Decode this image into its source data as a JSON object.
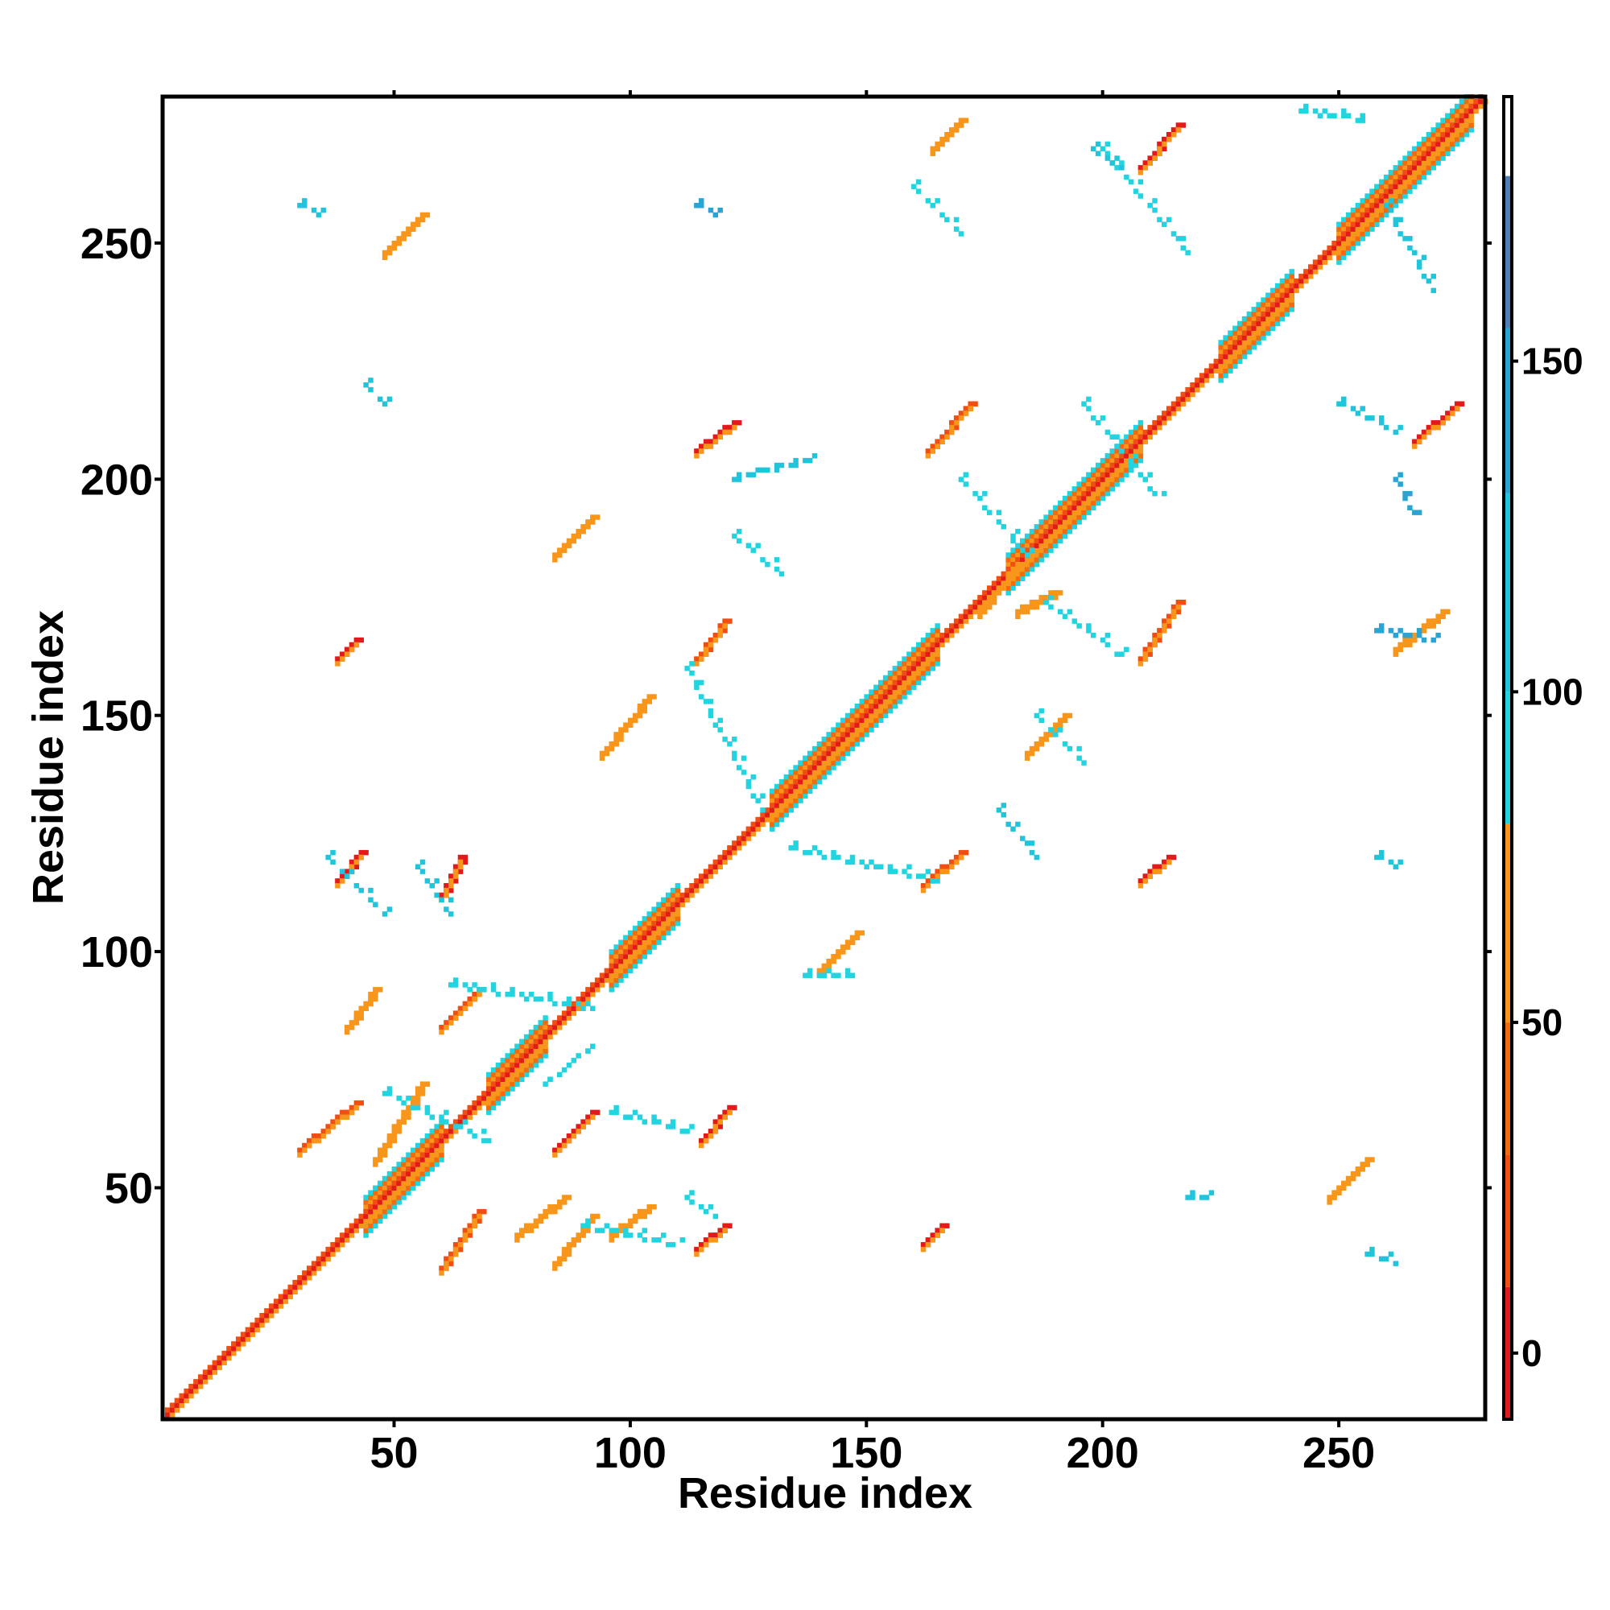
{
  "chart_data": {
    "type": "heatmap",
    "xlabel": "Residue index",
    "ylabel": "Residue index",
    "xlim": [
      1,
      281
    ],
    "ylim": [
      1,
      281
    ],
    "x_ticks": [
      50,
      100,
      150,
      200,
      250
    ],
    "y_ticks": [
      50,
      100,
      150,
      200,
      250
    ],
    "colorbar": {
      "range": [
        -10,
        190
      ],
      "ticks": [
        0,
        50,
        100,
        150
      ],
      "bands": [
        {
          "from": -10,
          "to": 10,
          "color": "#e31a1c"
        },
        {
          "from": 10,
          "to": 30,
          "color": "#f04e12"
        },
        {
          "from": 30,
          "to": 50,
          "color": "#f26b0f"
        },
        {
          "from": 50,
          "to": 80,
          "color": "#f7961a"
        },
        {
          "from": 80,
          "to": 100,
          "color": "#22d3e0"
        },
        {
          "from": 100,
          "to": 130,
          "color": "#20c5dc"
        },
        {
          "from": 130,
          "to": 155,
          "color": "#2aa5d3"
        },
        {
          "from": 155,
          "to": 178,
          "color": "#4f7fb6"
        },
        {
          "from": 178,
          "to": 190,
          "color": "#ffffff"
        }
      ]
    },
    "diagonal": {
      "from": 2,
      "to": 280
    },
    "helix_blocks": [
      {
        "from": 44,
        "to": 60,
        "colors": [
          "#f26b0f",
          "#22d3e0"
        ]
      },
      {
        "from": 70,
        "to": 82,
        "colors": [
          "#f26b0f",
          "#22d3e0"
        ]
      },
      {
        "from": 96,
        "to": 110,
        "colors": [
          "#f26b0f",
          "#22d3e0"
        ]
      },
      {
        "from": 130,
        "to": 165,
        "colors": [
          "#f26b0f",
          "#22d3e0"
        ]
      },
      {
        "from": 180,
        "to": 208,
        "colors": [
          "#f26b0f",
          "#22d3e0"
        ]
      },
      {
        "from": 225,
        "to": 240,
        "colors": [
          "#f26b0f",
          "#22d3e0"
        ]
      },
      {
        "from": 250,
        "to": 278,
        "colors": [
          "#f26b0f",
          "#22d3e0"
        ]
      }
    ],
    "contact_segments": [
      {
        "x": [
          30,
          42
        ],
        "y": [
          58,
          68
        ],
        "color": "#f04e12"
      },
      {
        "x": [
          60,
          68
        ],
        "y": [
          33,
          45
        ],
        "color": "#f04e12"
      },
      {
        "x": [
          60,
          68
        ],
        "y": [
          84,
          92
        ],
        "color": "#f04e12"
      },
      {
        "x": [
          84,
          92
        ],
        "y": [
          58,
          66
        ],
        "color": "#e31a1c"
      },
      {
        "x": [
          114,
          120
        ],
        "y": [
          37,
          42
        ],
        "color": "#e31a1c"
      },
      {
        "x": [
          114,
          120
        ],
        "y": [
          162,
          170
        ],
        "color": "#f04e12"
      },
      {
        "x": [
          38,
          43
        ],
        "y": [
          115,
          121
        ],
        "color": "#e31a1c"
      },
      {
        "x": [
          162,
          170
        ],
        "y": [
          114,
          121
        ],
        "color": "#f04e12"
      },
      {
        "x": [
          208,
          216
        ],
        "y": [
          162,
          174
        ],
        "color": "#f04e12"
      },
      {
        "x": [
          163,
          172
        ],
        "y": [
          206,
          216
        ],
        "color": "#f04e12"
      },
      {
        "x": [
          208,
          216
        ],
        "y": [
          266,
          275
        ],
        "color": "#e31a1c"
      },
      {
        "x": [
          266,
          275
        ],
        "y": [
          208,
          216
        ],
        "color": "#e31a1c"
      },
      {
        "x": [
          48,
          56
        ],
        "y": [
          248,
          256
        ],
        "color": "#f7961a"
      },
      {
        "x": [
          248,
          256
        ],
        "y": [
          48,
          56
        ],
        "color": "#f7961a"
      },
      {
        "x": [
          84,
          92
        ],
        "y": [
          184,
          192
        ],
        "color": "#f7961a"
      },
      {
        "x": [
          184,
          192
        ],
        "y": [
          142,
          150
        ],
        "color": "#f7961a"
      },
      {
        "x": [
          140,
          148
        ],
        "y": [
          96,
          104
        ],
        "color": "#f7961a"
      },
      {
        "x": [
          94,
          104
        ],
        "y": [
          142,
          154
        ],
        "color": "#f7961a"
      },
      {
        "x": [
          114,
          122
        ],
        "y": [
          206,
          212
        ],
        "color": "#e31a1c"
      },
      {
        "x": [
          164,
          170
        ],
        "y": [
          270,
          276
        ],
        "color": "#f7961a"
      },
      {
        "x": [
          262,
          272
        ],
        "y": [
          164,
          172
        ],
        "color": "#f7961a"
      },
      {
        "x": [
          40,
          46
        ],
        "y": [
          84,
          92
        ],
        "color": "#f7961a"
      },
      {
        "x": [
          96,
          104
        ],
        "y": [
          40,
          46
        ],
        "color": "#f7961a"
      },
      {
        "x": [
          46,
          56
        ],
        "y": [
          56,
          72
        ],
        "color": "#f7961a"
      },
      {
        "x": [
          115,
          121
        ],
        "y": [
          60,
          67
        ],
        "color": "#e31a1c"
      },
      {
        "x": [
          60,
          64
        ],
        "y": [
          112,
          120
        ],
        "color": "#e31a1c"
      },
      {
        "x": [
          38,
          42
        ],
        "y": [
          162,
          166
        ],
        "color": "#e31a1c"
      },
      {
        "x": [
          162,
          166
        ],
        "y": [
          38,
          42
        ],
        "color": "#e31a1c"
      },
      {
        "x": [
          208,
          214
        ],
        "y": [
          115,
          120
        ],
        "color": "#e31a1c"
      },
      {
        "x": [
          174,
          182
        ],
        "y": [
          172,
          182
        ],
        "color": "#f7961a"
      },
      {
        "x": [
          182,
          190
        ],
        "y": [
          172,
          176
        ],
        "color": "#f7961a"
      },
      {
        "x": [
          76,
          86
        ],
        "y": [
          40,
          48
        ],
        "color": "#f7961a"
      },
      {
        "x": [
          84,
          92
        ],
        "y": [
          34,
          44
        ],
        "color": "#f7961a"
      }
    ],
    "cyan_trails": [
      {
        "x": [
          48,
          70
        ],
        "y": [
          70,
          60
        ],
        "color": "#22d3e0"
      },
      {
        "x": [
          62,
          92
        ],
        "y": [
          93,
          88
        ],
        "color": "#22d3e0"
      },
      {
        "x": [
          82,
          92
        ],
        "y": [
          72,
          80
        ],
        "color": "#22d3e0"
      },
      {
        "x": [
          112,
          128
        ],
        "y": [
          160,
          130
        ],
        "color": "#22d3e0"
      },
      {
        "x": [
          134,
          165
        ],
        "y": [
          122,
          115
        ],
        "color": "#22d3e0"
      },
      {
        "x": [
          122,
          132
        ],
        "y": [
          188,
          180
        ],
        "color": "#22d3e0"
      },
      {
        "x": [
          170,
          184
        ],
        "y": [
          200,
          184
        ],
        "color": "#22d3e0"
      },
      {
        "x": [
          188,
          205
        ],
        "y": [
          174,
          162
        ],
        "color": "#22d3e0"
      },
      {
        "x": [
          196,
          212
        ],
        "y": [
          216,
          196
        ],
        "color": "#22d3e0"
      },
      {
        "x": [
          200,
          218
        ],
        "y": [
          270,
          248
        ],
        "color": "#22d3e0"
      },
      {
        "x": [
          198,
          204
        ],
        "y": [
          270,
          266
        ],
        "color": "#20c5dc"
      },
      {
        "x": [
          242,
          256
        ],
        "y": [
          278,
          276
        ],
        "color": "#22d3e0"
      },
      {
        "x": [
          260,
          270
        ],
        "y": [
          258,
          240
        ],
        "color": "#20c5dc"
      },
      {
        "x": [
          250,
          262
        ],
        "y": [
          216,
          210
        ],
        "color": "#20c5dc"
      },
      {
        "x": [
          262,
          266
        ],
        "y": [
          200,
          192
        ],
        "color": "#2aa5d3"
      },
      {
        "x": [
          186,
          196
        ],
        "y": [
          150,
          140
        ],
        "color": "#22d3e0"
      },
      {
        "x": [
          178,
          186
        ],
        "y": [
          130,
          120
        ],
        "color": "#20c5dc"
      },
      {
        "x": [
          137,
          148
        ],
        "y": [
          95,
          95
        ],
        "color": "#22d3e0"
      },
      {
        "x": [
          90,
          110
        ],
        "y": [
          42,
          38
        ],
        "color": "#22d3e0"
      },
      {
        "x": [
          112,
          118
        ],
        "y": [
          48,
          44
        ],
        "color": "#22d3e0"
      },
      {
        "x": [
          96,
          112
        ],
        "y": [
          66,
          62
        ],
        "color": "#22d3e0"
      },
      {
        "x": [
          36,
          48
        ],
        "y": [
          120,
          108
        ],
        "color": "#20c5dc"
      },
      {
        "x": [
          55,
          62
        ],
        "y": [
          118,
          108
        ],
        "color": "#20c5dc"
      },
      {
        "x": [
          44,
          48
        ],
        "y": [
          220,
          216
        ],
        "color": "#20c5dc"
      },
      {
        "x": [
          114,
          118
        ],
        "y": [
          258,
          256
        ],
        "color": "#2aa5d3"
      },
      {
        "x": [
          160,
          170
        ],
        "y": [
          262,
          252
        ],
        "color": "#22d3e0"
      },
      {
        "x": [
          30,
          34
        ],
        "y": [
          258,
          256
        ],
        "color": "#20c5dc"
      },
      {
        "x": [
          258,
          262
        ],
        "y": [
          120,
          118
        ],
        "color": "#20c5dc"
      },
      {
        "x": [
          256,
          262
        ],
        "y": [
          36,
          34
        ],
        "color": "#20c5dc"
      },
      {
        "x": [
          218,
          222
        ],
        "y": [
          48,
          48
        ],
        "color": "#20c5dc"
      },
      {
        "x": [
          258,
          270
        ],
        "y": [
          168,
          166
        ],
        "color": "#2aa5d3"
      },
      {
        "x": [
          122,
          138
        ],
        "y": [
          200,
          204
        ],
        "color": "#20c5dc"
      }
    ]
  }
}
